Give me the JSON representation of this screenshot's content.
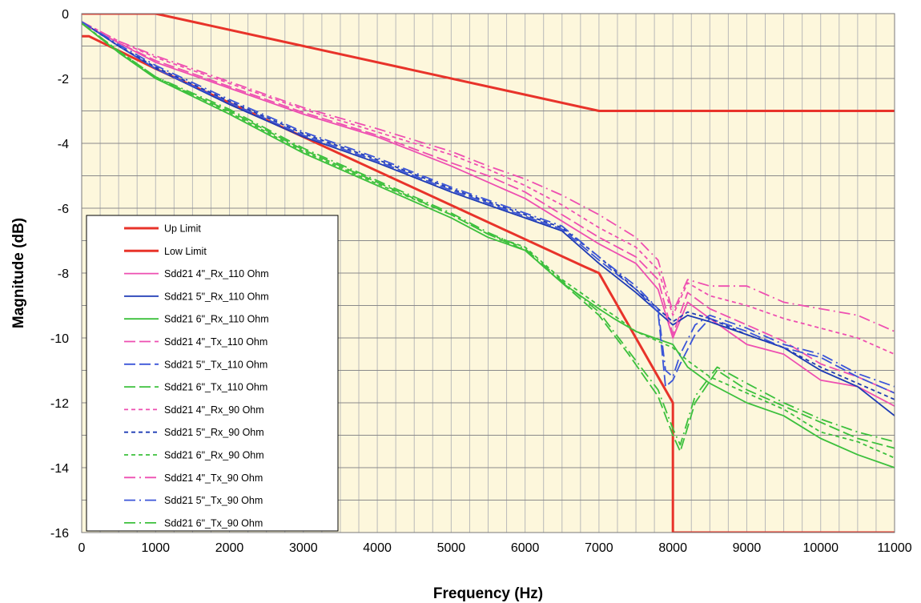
{
  "chart_data": {
    "type": "line",
    "xlabel": "Frequency (Hz)",
    "ylabel": "Magnitude (dB)",
    "xlim": [
      0,
      11000
    ],
    "ylim": [
      -16,
      0
    ],
    "x_ticks": [
      0,
      1000,
      2000,
      3000,
      4000,
      5000,
      6000,
      7000,
      8000,
      9000,
      10000,
      11000
    ],
    "y_ticks": [
      0,
      -2,
      -4,
      -6,
      -8,
      -10,
      -12,
      -14,
      -16
    ],
    "x_tick_labels": [
      "0",
      "1000",
      "2000",
      "3000",
      "4000",
      "5000",
      "6000",
      "7000",
      "8000",
      "9000",
      "10000",
      "11000"
    ],
    "y_tick_labels": [
      "0",
      "-2",
      "-4",
      "-6",
      "-8",
      "-10",
      "-12",
      "-14",
      "-16"
    ],
    "grid": true,
    "plot_background": "#fdf7dc",
    "legend_placement": "bottom-left",
    "series": [
      {
        "name": "Up Limit",
        "color": "#e8332a",
        "dash": "solid",
        "x": [
          0,
          1000,
          7000,
          11000
        ],
        "y": [
          0,
          0,
          -3,
          -3
        ]
      },
      {
        "name": "Low Limit",
        "color": "#e8332a",
        "dash": "solid",
        "x": [
          0,
          100,
          1000,
          6800,
          7000,
          7500,
          8000,
          8000,
          11000
        ],
        "y": [
          -0.7,
          -0.7,
          -1.7,
          -7.8,
          -8,
          -10,
          -12,
          -16,
          -16
        ]
      },
      {
        "name": "Sdd21 4\"_Rx_110 Ohm",
        "color": "#ee4fb1",
        "dash": "solid",
        "x": [
          0,
          500,
          1000,
          2000,
          3000,
          4000,
          5000,
          5500,
          6000,
          6500,
          7000,
          7500,
          7800,
          8000,
          8200,
          8500,
          9000,
          9500,
          10000,
          10500,
          11000
        ],
        "y": [
          -0.3,
          -0.9,
          -1.5,
          -2.3,
          -3.1,
          -3.8,
          -4.7,
          -5.2,
          -5.7,
          -6.4,
          -7.1,
          -7.7,
          -8.5,
          -10,
          -8.9,
          -9.4,
          -10.2,
          -10.5,
          -11.3,
          -11.5,
          -12.1
        ]
      },
      {
        "name": "Sdd21 5\"_Rx_110 Ohm",
        "color": "#1e3bb5",
        "dash": "solid",
        "x": [
          0,
          500,
          1000,
          2000,
          3000,
          4000,
          5000,
          5500,
          6000,
          6500,
          7000,
          7500,
          7800,
          8000,
          8200,
          8500,
          9000,
          9500,
          10000,
          10500,
          11000
        ],
        "y": [
          -0.25,
          -1.0,
          -1.7,
          -2.8,
          -3.8,
          -4.6,
          -5.5,
          -5.9,
          -6.3,
          -6.7,
          -7.7,
          -8.6,
          -9.2,
          -9.6,
          -9.3,
          -9.5,
          -9.9,
          -10.3,
          -11.0,
          -11.5,
          -12.4
        ]
      },
      {
        "name": "Sdd21 6\"_Rx_110 Ohm",
        "color": "#3cc03c",
        "dash": "solid",
        "x": [
          0,
          500,
          1000,
          2000,
          3000,
          4000,
          5000,
          5500,
          6000,
          6500,
          7000,
          7200,
          7500,
          8000,
          8200,
          8500,
          9000,
          9500,
          10000,
          10500,
          11000
        ],
        "y": [
          -0.3,
          -1.2,
          -2.0,
          -3.1,
          -4.3,
          -5.3,
          -6.3,
          -6.9,
          -7.3,
          -8.3,
          -9.1,
          -9.4,
          -9.8,
          -10.2,
          -10.9,
          -11.4,
          -12.0,
          -12.4,
          -13.1,
          -13.6,
          -14.0
        ]
      },
      {
        "name": "Sdd21 4\"_Tx_110 Ohm",
        "color": "#ee4fb1",
        "dash": "long",
        "x": [
          0,
          500,
          1000,
          2000,
          3000,
          4000,
          5000,
          5500,
          6000,
          6500,
          7000,
          7500,
          7800,
          8000,
          8200,
          8500,
          9000,
          9500,
          10000,
          10500,
          11000
        ],
        "y": [
          -0.3,
          -0.9,
          -1.45,
          -2.25,
          -3.05,
          -3.75,
          -4.6,
          -5.0,
          -5.5,
          -6.2,
          -6.9,
          -7.5,
          -8.2,
          -9.9,
          -8.6,
          -9.1,
          -9.6,
          -10.1,
          -10.8,
          -11.2,
          -11.7
        ]
      },
      {
        "name": "Sdd21 5\"_Tx_110 Ohm",
        "color": "#3b55d8",
        "dash": "long",
        "x": [
          0,
          500,
          1000,
          2000,
          3000,
          4000,
          5000,
          5500,
          6000,
          6500,
          7000,
          7500,
          7800,
          7900,
          8000,
          8100,
          8300,
          8500,
          9000,
          9500,
          10000,
          10500,
          11000
        ],
        "y": [
          -0.25,
          -1.0,
          -1.7,
          -2.75,
          -3.75,
          -4.55,
          -5.45,
          -5.85,
          -6.25,
          -6.65,
          -7.6,
          -8.5,
          -9.2,
          -11.5,
          -11.3,
          -10.8,
          -9.9,
          -9.4,
          -9.8,
          -10.3,
          -10.6,
          -11.2,
          -11.7
        ]
      },
      {
        "name": "Sdd21 6\"_Tx_110 Ohm",
        "color": "#3cc03c",
        "dash": "long",
        "x": [
          0,
          500,
          1000,
          2000,
          3000,
          4000,
          5000,
          5500,
          6000,
          6500,
          7000,
          7400,
          7800,
          8000,
          8100,
          8300,
          8600,
          9000,
          9500,
          10000,
          10500,
          11000
        ],
        "y": [
          -0.3,
          -1.2,
          -2.0,
          -3.0,
          -4.2,
          -5.2,
          -6.2,
          -6.8,
          -7.3,
          -8.3,
          -9.3,
          -10.5,
          -11.8,
          -13.0,
          -13.5,
          -12.0,
          -11.0,
          -11.6,
          -12.1,
          -12.6,
          -13.1,
          -13.4
        ]
      },
      {
        "name": "Sdd21 4\"_Rx_90 Ohm",
        "color": "#ee4fb1",
        "dash": "short",
        "x": [
          0,
          500,
          1000,
          2000,
          3000,
          4000,
          5000,
          5500,
          6000,
          6500,
          7000,
          7500,
          7800,
          8000,
          8200,
          8500,
          9000,
          9500,
          10000,
          10500,
          11000
        ],
        "y": [
          -0.25,
          -0.85,
          -1.35,
          -2.15,
          -2.95,
          -3.65,
          -4.35,
          -4.8,
          -5.3,
          -5.9,
          -6.6,
          -7.2,
          -7.9,
          -9.3,
          -8.3,
          -8.7,
          -9.0,
          -9.4,
          -9.7,
          -10.0,
          -10.5
        ]
      },
      {
        "name": "Sdd21 5\"_Rx_90 Ohm",
        "color": "#1e3bb5",
        "dash": "short",
        "x": [
          0,
          500,
          1000,
          2000,
          3000,
          4000,
          5000,
          5500,
          6000,
          6500,
          7000,
          7500,
          7800,
          8000,
          8200,
          8500,
          9000,
          9500,
          10000,
          10500,
          11000
        ],
        "y": [
          -0.25,
          -1.0,
          -1.65,
          -2.7,
          -3.7,
          -4.5,
          -5.4,
          -5.8,
          -6.2,
          -6.6,
          -7.5,
          -8.5,
          -9.1,
          -9.5,
          -9.2,
          -9.4,
          -9.9,
          -10.3,
          -10.9,
          -11.4,
          -11.9
        ]
      },
      {
        "name": "Sdd21 6\"_Rx_90 Ohm",
        "color": "#3cc03c",
        "dash": "short",
        "x": [
          0,
          500,
          1000,
          2000,
          3000,
          4000,
          5000,
          5500,
          6000,
          6500,
          7000,
          7200,
          7500,
          8000,
          8200,
          8500,
          9000,
          9500,
          10000,
          10500,
          11000
        ],
        "y": [
          -0.3,
          -1.15,
          -1.95,
          -3.05,
          -4.25,
          -5.25,
          -6.2,
          -6.8,
          -7.2,
          -8.2,
          -9.0,
          -9.3,
          -9.8,
          -10.3,
          -10.7,
          -11.2,
          -11.7,
          -12.2,
          -12.9,
          -13.2,
          -13.7
        ]
      },
      {
        "name": "Sdd21 4\"_Tx_90 Ohm",
        "color": "#ee4fb1",
        "dash": "dashdot",
        "x": [
          0,
          500,
          1000,
          2000,
          3000,
          4000,
          5000,
          5500,
          6000,
          6500,
          7000,
          7500,
          7800,
          8000,
          8200,
          8500,
          9000,
          9500,
          10000,
          10500,
          11000
        ],
        "y": [
          -0.25,
          -0.85,
          -1.3,
          -2.1,
          -2.9,
          -3.55,
          -4.25,
          -4.7,
          -5.1,
          -5.6,
          -6.2,
          -6.9,
          -7.6,
          -9.2,
          -8.2,
          -8.4,
          -8.4,
          -8.9,
          -9.1,
          -9.3,
          -9.8
        ]
      },
      {
        "name": "Sdd21 5\"_Tx_90 Ohm",
        "color": "#3b55d8",
        "dash": "dashdot",
        "x": [
          0,
          500,
          1000,
          2000,
          3000,
          4000,
          5000,
          5500,
          6000,
          6500,
          7000,
          7500,
          7800,
          7900,
          8000,
          8100,
          8300,
          8500,
          9000,
          9500,
          10000,
          10500,
          11000
        ],
        "y": [
          -0.25,
          -0.95,
          -1.6,
          -2.65,
          -3.65,
          -4.45,
          -5.35,
          -5.75,
          -6.15,
          -6.55,
          -7.5,
          -8.4,
          -9.1,
          -11.0,
          -11.2,
          -10.5,
          -9.6,
          -9.3,
          -9.7,
          -10.2,
          -10.5,
          -11.1,
          -11.5
        ]
      },
      {
        "name": "Sdd21 6\"_Tx_90 Ohm",
        "color": "#3cc03c",
        "dash": "dashdot",
        "x": [
          0,
          500,
          1000,
          2000,
          3000,
          4000,
          5000,
          5500,
          6000,
          6500,
          7000,
          7400,
          7800,
          8000,
          8100,
          8300,
          8600,
          9000,
          9500,
          10000,
          10500,
          11000
        ],
        "y": [
          -0.3,
          -1.15,
          -1.95,
          -2.95,
          -4.15,
          -5.15,
          -6.15,
          -6.75,
          -7.25,
          -8.25,
          -9.2,
          -10.4,
          -11.6,
          -12.8,
          -13.3,
          -11.8,
          -10.9,
          -11.4,
          -12.0,
          -12.5,
          -12.9,
          -13.2
        ]
      }
    ]
  }
}
